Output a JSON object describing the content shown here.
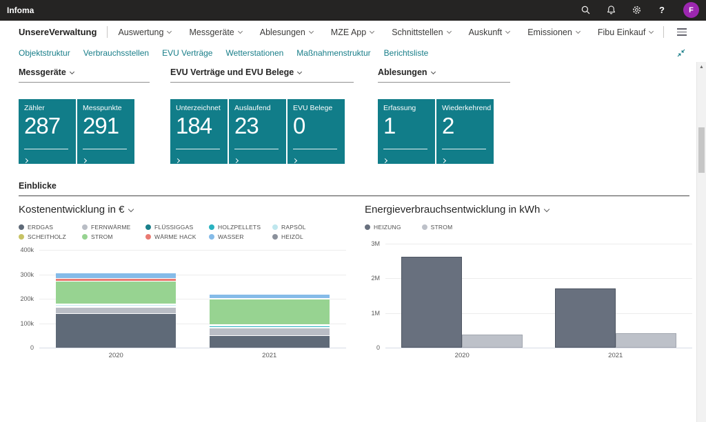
{
  "topbar": {
    "app_title": "Infoma",
    "avatar_initial": "F"
  },
  "navbar": {
    "brand": "UnsereVerwaltung",
    "items": [
      "Auswertung",
      "Messgeräte",
      "Ablesungen",
      "MZE App",
      "Schnittstellen",
      "Auskunft",
      "Emissionen",
      "Fibu Einkauf"
    ]
  },
  "subnav": {
    "links": [
      "Objektstruktur",
      "Verbrauchsstellen",
      "EVU Verträge",
      "Wetterstationen",
      "Maßnahmenstruktur",
      "Berichtsliste"
    ]
  },
  "sections": [
    {
      "title": "Messgeräte",
      "cards": [
        {
          "label": "Zähler",
          "value": "287"
        },
        {
          "label": "Messpunkte",
          "value": "291"
        }
      ]
    },
    {
      "title": "EVU Verträge und EVU Belege",
      "cards": [
        {
          "label": "Unterzeichnet",
          "value": "184"
        },
        {
          "label": "Auslaufend",
          "value": "23"
        },
        {
          "label": "EVU Belege",
          "value": "0"
        }
      ]
    },
    {
      "title": "Ablesungen",
      "cards": [
        {
          "label": "Erfassung",
          "value": "1"
        },
        {
          "label": "Wiederkehrend",
          "value": "2"
        }
      ]
    }
  ],
  "insights_title": "Einblicke",
  "colors": {
    "tile_teal": "#117d89",
    "subnav_teal": "#177d88",
    "avatar_purple": "#9c27b0",
    "topbar_dark": "#252423"
  },
  "chart_data": [
    {
      "type": "bar",
      "stacked": true,
      "title": "Kostenentwicklung in €",
      "legend_position": "top",
      "grid": true,
      "categories": [
        "2020",
        "2021"
      ],
      "series": [
        {
          "name": "ERDGAS",
          "color": "#5f6a78",
          "values": [
            141000,
            52000
          ]
        },
        {
          "name": "FERNWÄRME",
          "color": "#b9bdc5",
          "values": [
            25000,
            29000
          ]
        },
        {
          "name": "FLÜSSIGGAS",
          "color": "#1a7f8a",
          "values": [
            1500,
            1500
          ]
        },
        {
          "name": "HOLZPELLETS",
          "color": "#29b2c0",
          "values": [
            4000,
            6000
          ]
        },
        {
          "name": "RAPSÖL",
          "color": "#bfe7ee",
          "values": [
            5000,
            2000
          ]
        },
        {
          "name": "SCHEITHOLZ",
          "color": "#c7c365",
          "values": [
            1500,
            1500
          ]
        },
        {
          "name": "STROM",
          "color": "#97d391",
          "values": [
            94000,
            104000
          ]
        },
        {
          "name": "WÄRME HACK",
          "color": "#e97a72",
          "values": [
            10000,
            4000
          ]
        },
        {
          "name": "WASSER",
          "color": "#85bbe8",
          "values": [
            22000,
            16000
          ]
        },
        {
          "name": "HEIZÖL",
          "color": "#8b919c",
          "values": [
            2000,
            1000
          ]
        }
      ],
      "ylim": [
        0,
        400000
      ],
      "yticks": [
        "400k",
        "300k",
        "200k",
        "100k",
        "0"
      ],
      "xlabel": "",
      "ylabel": ""
    },
    {
      "type": "bar",
      "stacked": false,
      "title": "Energieverbrauchsentwicklung in kWh",
      "legend_position": "top",
      "grid": true,
      "categories": [
        "2020",
        "2021"
      ],
      "series": [
        {
          "name": "HEIZUNG",
          "color": "#68707e",
          "border": "#4d5562",
          "values": [
            2620000,
            1700000
          ]
        },
        {
          "name": "STROM",
          "color": "#bdc1c9",
          "border": "#a2a6af",
          "values": [
            380000,
            420000
          ]
        }
      ],
      "ylim": [
        0,
        3000000
      ],
      "yticks": [
        "3M",
        "2M",
        "1M",
        "0"
      ],
      "xlabel": "",
      "ylabel": ""
    }
  ]
}
